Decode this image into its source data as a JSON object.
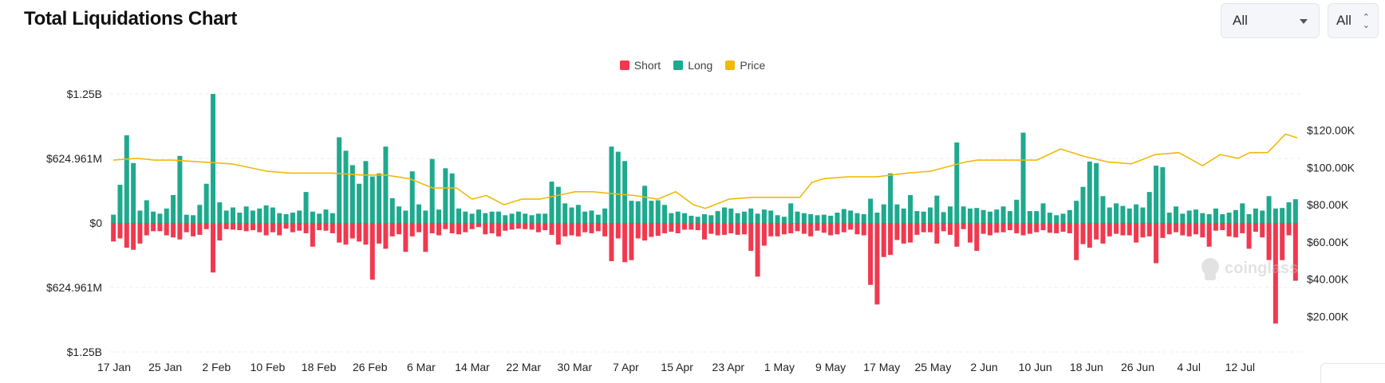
{
  "header": {
    "title": "Total Liquidations Chart"
  },
  "controls": {
    "range_value": "All",
    "coin_value": "All"
  },
  "colors": {
    "short": "#f0394f",
    "long": "#1fa98e",
    "price": "#f0b90b"
  },
  "watermark": "coinglass",
  "chart_data": {
    "type": "bar",
    "title": "Total Liquidations Chart",
    "legend": {
      "position": "top-center",
      "entries": [
        "Short",
        "Long",
        "Price"
      ]
    },
    "grid": true,
    "x_ticks": [
      "17 Jan",
      "25 Jan",
      "2 Feb",
      "10 Feb",
      "18 Feb",
      "26 Feb",
      "6 Mar",
      "14 Mar",
      "22 Mar",
      "30 Mar",
      "7 Apr",
      "15 Apr",
      "23 Apr",
      "1 May",
      "9 May",
      "17 May",
      "25 May",
      "2 Jun",
      "10 Jun",
      "18 Jun",
      "26 Jun",
      "4 Jul",
      "12 Jul"
    ],
    "y_left": {
      "ticks": [
        "$1.25B",
        "$624.961M",
        "$0",
        "$624.961M",
        "$1.25B"
      ],
      "range": [
        -1250,
        1250
      ],
      "unit": "M USD"
    },
    "y_right": {
      "ticks": [
        "$120.00K",
        "$100.00K",
        "$80.00K",
        "$60.00K",
        "$40.00K",
        "$20.00K"
      ],
      "range": [
        0,
        140
      ],
      "unit": "K USD"
    },
    "series": [
      {
        "name": "Long",
        "values": [
          80,
          370,
          850,
          580,
          120,
          220,
          110,
          90,
          140,
          270,
          650,
          80,
          75,
          175,
          380,
          1250,
          200,
          120,
          150,
          100,
          160,
          120,
          140,
          170,
          150,
          95,
          85,
          100,
          120,
          300,
          110,
          90,
          130,
          95,
          830,
          700,
          560,
          380,
          600,
          450,
          480,
          740,
          240,
          160,
          120,
          500,
          180,
          120,
          620,
          130,
          530,
          480,
          140,
          110,
          90,
          130,
          95,
          110,
          110,
          75,
          90,
          110,
          90,
          75,
          90,
          90,
          400,
          350,
          190,
          150,
          175,
          110,
          120,
          80,
          140,
          740,
          690,
          600,
          215,
          210,
          360,
          215,
          220,
          175,
          95,
          110,
          95,
          70,
          60,
          85,
          75,
          115,
          150,
          140,
          95,
          110,
          140,
          90,
          130,
          120,
          75,
          60,
          190,
          110,
          95,
          85,
          75,
          80,
          70,
          100,
          135,
          120,
          95,
          85,
          235,
          100,
          180,
          480,
          180,
          140,
          270,
          115,
          110,
          150,
          265,
          105,
          160,
          780,
          160,
          140,
          145,
          125,
          110,
          130,
          160,
          115,
          225,
          875,
          115,
          115,
          190,
          100,
          75,
          90,
          125,
          215,
          350,
          595,
          580,
          260,
          150,
          190,
          165,
          140,
          180,
          150,
          300,
          555,
          540,
          100,
          160,
          90,
          120,
          130,
          95,
          85,
          140,
          85,
          100,
          125,
          190,
          85,
          140,
          120,
          260,
          140,
          145,
          200,
          230
        ]
      },
      {
        "name": "Short",
        "values": [
          180,
          150,
          240,
          260,
          200,
          120,
          80,
          80,
          120,
          140,
          160,
          90,
          130,
          115,
          60,
          480,
          170,
          60,
          65,
          70,
          80,
          70,
          90,
          120,
          90,
          120,
          55,
          90,
          75,
          100,
          230,
          70,
          75,
          100,
          190,
          210,
          150,
          180,
          210,
          550,
          200,
          250,
          130,
          110,
          280,
          130,
          90,
          280,
          100,
          120,
          60,
          100,
          110,
          90,
          60,
          40,
          110,
          100,
          130,
          75,
          65,
          55,
          60,
          65,
          90,
          70,
          115,
          210,
          130,
          120,
          130,
          90,
          100,
          80,
          130,
          370,
          150,
          380,
          360,
          150,
          170,
          135,
          125,
          100,
          85,
          100,
          65,
          65,
          70,
          160,
          105,
          120,
          115,
          100,
          115,
          110,
          270,
          520,
          220,
          130,
          130,
          110,
          100,
          80,
          105,
          130,
          75,
          95,
          120,
          110,
          90,
          65,
          110,
          120,
          600,
          790,
          330,
          310,
          165,
          200,
          190,
          115,
          90,
          90,
          200,
          80,
          115,
          230,
          60,
          190,
          270,
          105,
          120,
          95,
          90,
          70,
          100,
          120,
          105,
          90,
          70,
          95,
          100,
          85,
          100,
          360,
          205,
          240,
          160,
          200,
          130,
          105,
          120,
          120,
          190,
          140,
          130,
          390,
          145,
          110,
          90,
          120,
          130,
          110,
          140,
          230,
          75,
          70,
          130,
          140,
          100,
          250,
          85,
          140,
          360,
          975,
          360,
          120,
          560
        ]
      },
      {
        "name": "Price",
        "x": [
          0,
          0.02,
          0.035,
          0.05,
          0.075,
          0.1,
          0.115,
          0.13,
          0.15,
          0.185,
          0.21,
          0.23,
          0.25,
          0.27,
          0.29,
          0.303,
          0.315,
          0.33,
          0.345,
          0.36,
          0.375,
          0.39,
          0.405,
          0.42,
          0.44,
          0.46,
          0.475,
          0.49,
          0.5,
          0.52,
          0.54,
          0.56,
          0.58,
          0.59,
          0.6,
          0.62,
          0.645,
          0.67,
          0.69,
          0.72,
          0.73,
          0.755,
          0.78,
          0.8,
          0.82,
          0.84,
          0.86,
          0.88,
          0.9,
          0.92,
          0.935,
          0.95,
          0.96,
          0.975,
          0.99,
          1
        ],
        "values": [
          104,
          105,
          104,
          104,
          103,
          102,
          100,
          98,
          97,
          97,
          96,
          96,
          94,
          89,
          89,
          83,
          85,
          80,
          83,
          83,
          85,
          87,
          87,
          86,
          85,
          83,
          87,
          80,
          78,
          83,
          84,
          84,
          84,
          92,
          94,
          95,
          95,
          97,
          98,
          103,
          104,
          104,
          104,
          110,
          106,
          103,
          102,
          107,
          108,
          101,
          107,
          105,
          108,
          108,
          118,
          116
        ]
      }
    ]
  }
}
